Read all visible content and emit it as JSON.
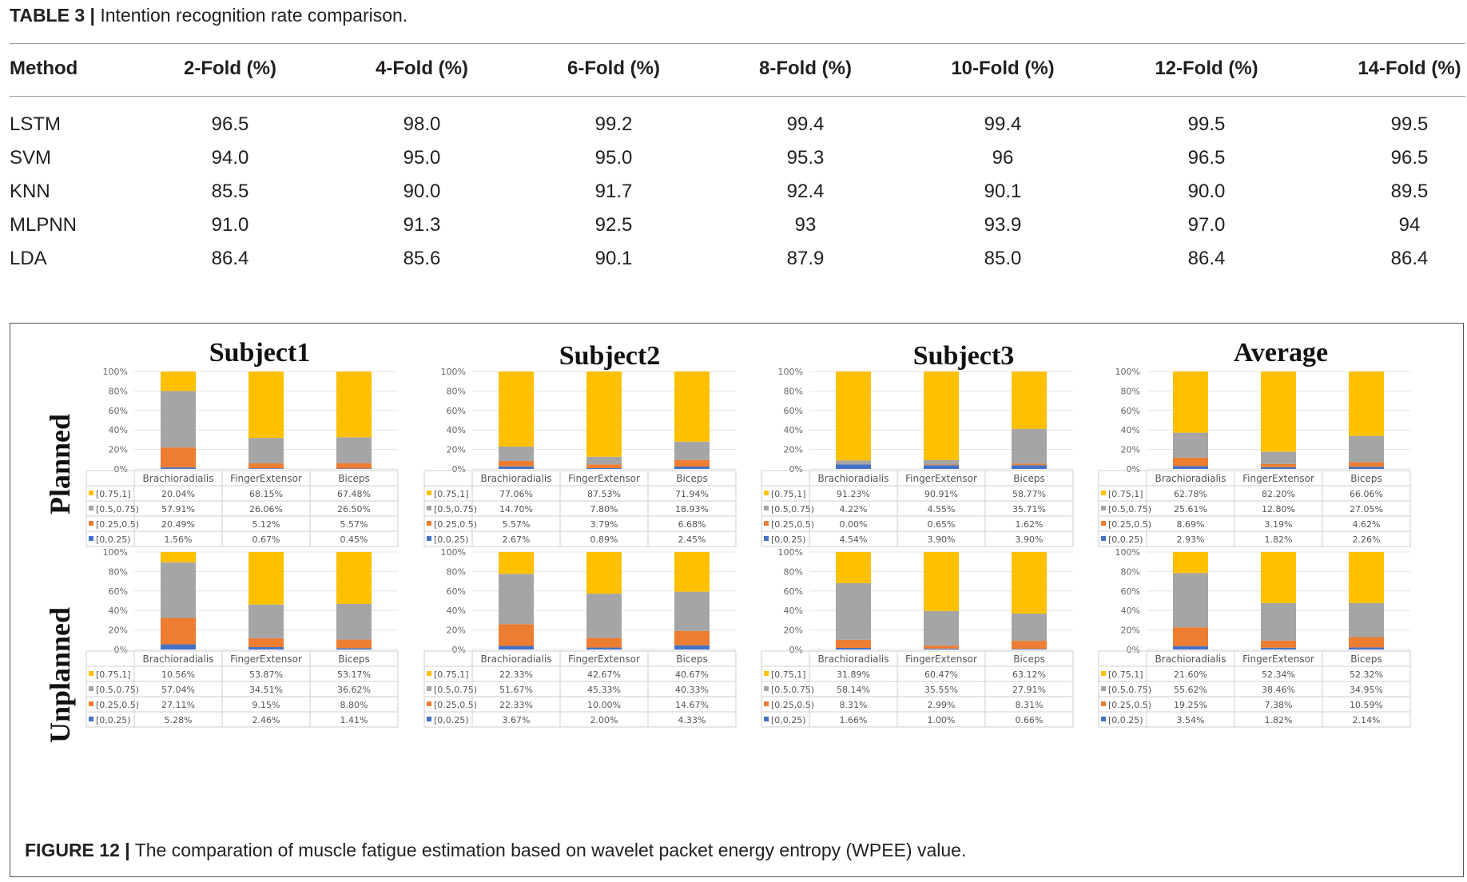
{
  "table": {
    "caption_label": "TABLE 3 |",
    "caption_text": "Intention recognition rate comparison.",
    "headers": [
      "Method",
      "2-Fold (%)",
      "4-Fold (%)",
      "6-Fold (%)",
      "8-Fold (%)",
      "10-Fold (%)",
      "12-Fold (%)",
      "14-Fold (%)"
    ],
    "rows": [
      [
        "LSTM",
        "96.5",
        "98.0",
        "99.2",
        "99.4",
        "99.4",
        "99.5",
        "99.5"
      ],
      [
        "SVM",
        "94.0",
        "95.0",
        "95.0",
        "95.3",
        "96",
        "96.5",
        "96.5"
      ],
      [
        "KNN",
        "85.5",
        "90.0",
        "91.7",
        "92.4",
        "90.1",
        "90.0",
        "89.5"
      ],
      [
        "MLPNN",
        "91.0",
        "91.3",
        "92.5",
        "93",
        "93.9",
        "97.0",
        "94"
      ],
      [
        "LDA",
        "86.4",
        "85.6",
        "90.1",
        "87.9",
        "85.0",
        "86.4",
        "86.4"
      ]
    ]
  },
  "figure": {
    "caption_label": "FIGURE 12 |",
    "caption_text": "The comparation of muscle fatigue estimation based on wavelet packet energy entropy (WPEE) value.",
    "subjects": [
      "Subject1",
      "Subject2",
      "Subject3",
      "Average"
    ],
    "row_labels": [
      "Planned",
      "Unplanned"
    ]
  },
  "chart_data": {
    "type": "bar",
    "stacked": true,
    "categories": [
      "Brachioradialis",
      "FingerExtensor",
      "Biceps"
    ],
    "series_names": [
      "[0.75,1]",
      "[0.5,0.75)",
      "[0.25,0.5)",
      "[0,0.25)"
    ],
    "colors": [
      "#ffc000",
      "#a5a5a5",
      "#ed7d31",
      "#4472c4"
    ],
    "y_ticks": [
      "0%",
      "20%",
      "40%",
      "60%",
      "80%",
      "100%"
    ],
    "ylim": [
      0,
      100
    ],
    "panels": [
      {
        "subject": "Subject1",
        "condition": "Planned",
        "values": [
          [
            "20.04%",
            "68.15%",
            "67.48%"
          ],
          [
            "57.91%",
            "26.06%",
            "26.50%"
          ],
          [
            "20.49%",
            "5.12%",
            "5.57%"
          ],
          [
            "1.56%",
            "0.67%",
            "0.45%"
          ]
        ]
      },
      {
        "subject": "Subject2",
        "condition": "Planned",
        "values": [
          [
            "77.06%",
            "87.53%",
            "71.94%"
          ],
          [
            "14.70%",
            "7.80%",
            "18.93%"
          ],
          [
            "5.57%",
            "3.79%",
            "6.68%"
          ],
          [
            "2.67%",
            "0.89%",
            "2.45%"
          ]
        ]
      },
      {
        "subject": "Subject3",
        "condition": "Planned",
        "values": [
          [
            "91.23%",
            "90.91%",
            "58.77%"
          ],
          [
            "4.22%",
            "4.55%",
            "35.71%"
          ],
          [
            "0.00%",
            "0.65%",
            "1.62%"
          ],
          [
            "4.54%",
            "3.90%",
            "3.90%"
          ]
        ]
      },
      {
        "subject": "Average",
        "condition": "Planned",
        "values": [
          [
            "62.78%",
            "82.20%",
            "66.06%"
          ],
          [
            "25.61%",
            "12.80%",
            "27.05%"
          ],
          [
            "8.69%",
            "3.19%",
            "4.62%"
          ],
          [
            "2.93%",
            "1.82%",
            "2.26%"
          ]
        ]
      },
      {
        "subject": "Subject1",
        "condition": "Unplanned",
        "values": [
          [
            "10.56%",
            "53.87%",
            "53.17%"
          ],
          [
            "57.04%",
            "34.51%",
            "36.62%"
          ],
          [
            "27.11%",
            "9.15%",
            "8.80%"
          ],
          [
            "5.28%",
            "2.46%",
            "1.41%"
          ]
        ]
      },
      {
        "subject": "Subject2",
        "condition": "Unplanned",
        "values": [
          [
            "22.33%",
            "42.67%",
            "40.67%"
          ],
          [
            "51.67%",
            "45.33%",
            "40.33%"
          ],
          [
            "22.33%",
            "10.00%",
            "14.67%"
          ],
          [
            "3.67%",
            "2.00%",
            "4.33%"
          ]
        ]
      },
      {
        "subject": "Subject3",
        "condition": "Unplanned",
        "values": [
          [
            "31.89%",
            "60.47%",
            "63.12%"
          ],
          [
            "58.14%",
            "35.55%",
            "27.91%"
          ],
          [
            "8.31%",
            "2.99%",
            "8.31%"
          ],
          [
            "1.66%",
            "1.00%",
            "0.66%"
          ]
        ]
      },
      {
        "subject": "Average",
        "condition": "Unplanned",
        "values": [
          [
            "21.60%",
            "52.34%",
            "52.32%"
          ],
          [
            "55.62%",
            "38.46%",
            "34.95%"
          ],
          [
            "19.25%",
            "7.38%",
            "10.59%"
          ],
          [
            "3.54%",
            "1.82%",
            "2.14%"
          ]
        ]
      }
    ]
  }
}
